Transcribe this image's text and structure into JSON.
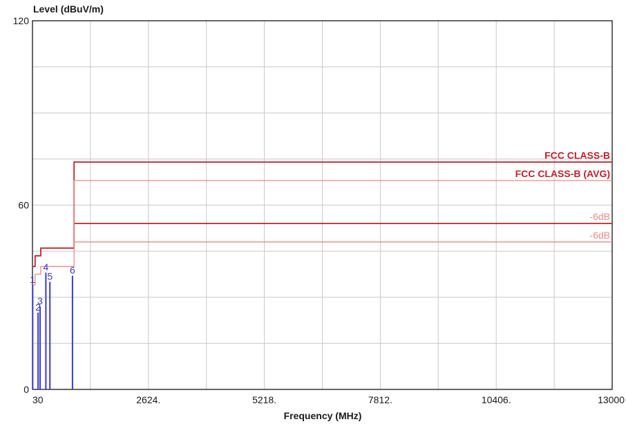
{
  "chart_data": {
    "type": "line",
    "ylabel": "Level (dBuV/m)",
    "xlabel": "Frequency (MHz)",
    "xlim": [
      30,
      13000
    ],
    "ylim": [
      0,
      120
    ],
    "x_ticks": [
      30,
      2624,
      5218,
      7812,
      10406,
      13000
    ],
    "x_tick_labels": [
      "30",
      "2624.",
      "5218.",
      "7812.",
      "10406.",
      "13000"
    ],
    "y_tick_labels": [
      "0",
      "60",
      "120"
    ],
    "y_ticks": [
      0,
      60,
      120
    ],
    "grid": true,
    "colors": {
      "limit": "#c0222e",
      "limit_margin": "#e88a8a",
      "marker": "#3a3ad0",
      "grid": "#c8c8c8"
    },
    "series": [
      {
        "name": "FCC CLASS-B",
        "role": "limit",
        "x": [
          30,
          88,
          88,
          216,
          216,
          960,
          960,
          13000
        ],
        "y": [
          40,
          40,
          43.5,
          43.5,
          46,
          46,
          74,
          74
        ]
      },
      {
        "name": "FCC CLASS-B (AVG)",
        "role": "limit",
        "x": [
          960,
          13000
        ],
        "y": [
          54,
          54
        ]
      },
      {
        "name": "-6dB",
        "role": "margin",
        "x": [
          30,
          88,
          88,
          216,
          216,
          960,
          960,
          13000
        ],
        "y": [
          34,
          34,
          37.5,
          37.5,
          40,
          40,
          68,
          68
        ]
      },
      {
        "name": "-6dB",
        "role": "margin",
        "x": [
          960,
          13000
        ],
        "y": [
          48,
          48
        ]
      }
    ],
    "markers": [
      {
        "label": "1",
        "x": 35,
        "y": 34
      },
      {
        "label": "2",
        "x": 155,
        "y": 25
      },
      {
        "label": "3",
        "x": 200,
        "y": 27
      },
      {
        "label": "4",
        "x": 330,
        "y": 38
      },
      {
        "label": "5",
        "x": 420,
        "y": 35
      },
      {
        "label": "6",
        "x": 925,
        "y": 37
      }
    ]
  }
}
